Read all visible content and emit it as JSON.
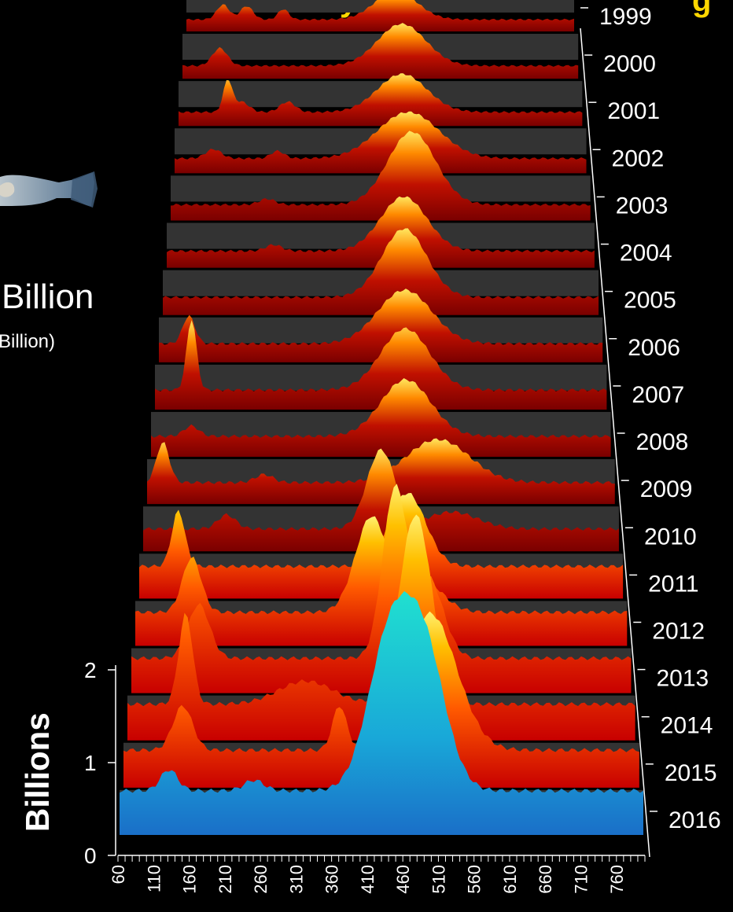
{
  "page": {
    "title_fragment_1": "y",
    "title_fragment_2": "g",
    "side_text": "Billion",
    "side_text_small": "Billion)",
    "title_color": "#FFD700",
    "background": "#000000"
  },
  "chart_data": {
    "type": "area",
    "style": "3d-waterfall ridgeline",
    "ylabel": "Billions",
    "y_ticks": [
      "0",
      "1",
      "2"
    ],
    "ylim": [
      0,
      2
    ],
    "x_ticks": [
      "60",
      "110",
      "160",
      "210",
      "260",
      "310",
      "360",
      "410",
      "460",
      "510",
      "560",
      "610",
      "660",
      "710",
      "760"
    ],
    "xlim": [
      60,
      800
    ],
    "series_colors": {
      "older_years": "#D40000",
      "peak": "#FFE400",
      "highlight_2016": "#18B4C8"
    },
    "series": [
      {
        "name": "1999",
        "peaks": [
          {
            "x": 130,
            "h": 0.2,
            "w": 12
          },
          {
            "x": 175,
            "h": 0.18,
            "w": 12
          },
          {
            "x": 245,
            "h": 0.14,
            "w": 10
          },
          {
            "x": 460,
            "h": 0.38,
            "w": 40
          }
        ]
      },
      {
        "name": "2000",
        "peaks": [
          {
            "x": 130,
            "h": 0.22,
            "w": 14
          },
          {
            "x": 470,
            "h": 0.52,
            "w": 45
          }
        ]
      },
      {
        "name": "2001",
        "peaks": [
          {
            "x": 150,
            "h": 0.36,
            "w": 8
          },
          {
            "x": 175,
            "h": 0.12,
            "w": 14
          },
          {
            "x": 260,
            "h": 0.12,
            "w": 14
          },
          {
            "x": 470,
            "h": 0.44,
            "w": 45
          }
        ]
      },
      {
        "name": "2002",
        "peaks": [
          {
            "x": 130,
            "h": 0.1,
            "w": 14
          },
          {
            "x": 245,
            "h": 0.08,
            "w": 12
          },
          {
            "x": 480,
            "h": 0.5,
            "w": 55
          }
        ]
      },
      {
        "name": "2003",
        "peaks": [
          {
            "x": 230,
            "h": 0.06,
            "w": 14
          },
          {
            "x": 485,
            "h": 0.74,
            "w": 42
          }
        ]
      },
      {
        "name": "2004",
        "peaks": [
          {
            "x": 245,
            "h": 0.06,
            "w": 14
          },
          {
            "x": 470,
            "h": 0.52,
            "w": 40
          }
        ]
      },
      {
        "name": "2005",
        "peaks": [
          {
            "x": 470,
            "h": 0.62,
            "w": 38
          }
        ]
      },
      {
        "name": "2006",
        "peaks": [
          {
            "x": 110,
            "h": 0.24,
            "w": 10
          },
          {
            "x": 470,
            "h": 0.46,
            "w": 45
          }
        ]
      },
      {
        "name": "2007",
        "peaks": [
          {
            "x": 120,
            "h": 0.58,
            "w": 8
          },
          {
            "x": 470,
            "h": 0.5,
            "w": 40
          }
        ]
      },
      {
        "name": "2008",
        "peaks": [
          {
            "x": 125,
            "h": 0.08,
            "w": 12
          },
          {
            "x": 470,
            "h": 0.44,
            "w": 40
          }
        ]
      },
      {
        "name": "2009",
        "peaks": [
          {
            "x": 85,
            "h": 0.3,
            "w": 10
          },
          {
            "x": 245,
            "h": 0.06,
            "w": 14
          },
          {
            "x": 520,
            "h": 0.32,
            "w": 50
          }
        ]
      },
      {
        "name": "2010",
        "peaks": [
          {
            "x": 190,
            "h": 0.1,
            "w": 14
          },
          {
            "x": 430,
            "h": 0.56,
            "w": 22
          },
          {
            "x": 540,
            "h": 0.12,
            "w": 40
          }
        ]
      },
      {
        "name": "2011",
        "peaks": [
          {
            "x": 120,
            "h": 0.38,
            "w": 10
          },
          {
            "x": 470,
            "h": 0.5,
            "w": 28
          }
        ]
      },
      {
        "name": "2012",
        "peaks": [
          {
            "x": 145,
            "h": 0.36,
            "w": 14
          },
          {
            "x": 415,
            "h": 0.62,
            "w": 24
          },
          {
            "x": 490,
            "h": 0.22,
            "w": 30
          }
        ]
      },
      {
        "name": "2013",
        "peaks": [
          {
            "x": 160,
            "h": 0.34,
            "w": 16
          },
          {
            "x": 450,
            "h": 1.05,
            "w": 18
          },
          {
            "x": 500,
            "h": 0.5,
            "w": 22
          }
        ]
      },
      {
        "name": "2014",
        "peaks": [
          {
            "x": 145,
            "h": 0.55,
            "w": 10
          },
          {
            "x": 320,
            "h": 0.14,
            "w": 40
          },
          {
            "x": 480,
            "h": 1.15,
            "w": 24
          }
        ]
      },
      {
        "name": "2015",
        "peaks": [
          {
            "x": 145,
            "h": 0.26,
            "w": 14
          },
          {
            "x": 370,
            "h": 0.26,
            "w": 10
          },
          {
            "x": 500,
            "h": 0.8,
            "w": 38
          }
        ]
      },
      {
        "name": "2016",
        "peaks": [
          {
            "x": 130,
            "h": 0.12,
            "w": 12
          },
          {
            "x": 250,
            "h": 0.06,
            "w": 14
          },
          {
            "x": 440,
            "h": 0.8,
            "w": 30
          },
          {
            "x": 490,
            "h": 0.78,
            "w": 30
          }
        ]
      }
    ]
  }
}
